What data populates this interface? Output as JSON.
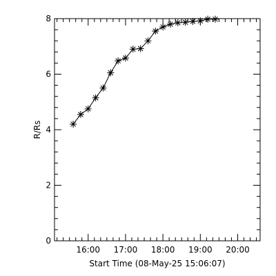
{
  "chart_data": {
    "type": "scatter",
    "title": "",
    "xlabel": "Start Time (08-May-25 15:06:07)",
    "ylabel": "R/Rs",
    "xlim": [
      "15:06",
      "20:36"
    ],
    "ylim": [
      0,
      8
    ],
    "x_ticks": [
      "16:00",
      "17:00",
      "18:00",
      "19:00",
      "20:00"
    ],
    "y_ticks": [
      "0",
      "2",
      "4",
      "6",
      "8"
    ],
    "grid": false,
    "legend": "none",
    "marker": "asterisk",
    "line": "connected",
    "x": [
      "15:36",
      "15:48",
      "16:00",
      "16:12",
      "16:24",
      "16:36",
      "16:48",
      "17:00",
      "17:12",
      "17:24",
      "17:36",
      "17:48",
      "18:00",
      "18:12",
      "18:24",
      "18:36",
      "18:48",
      "19:00",
      "19:12",
      "19:24"
    ],
    "y": [
      4.2,
      4.55,
      4.75,
      5.15,
      5.5,
      6.05,
      6.48,
      6.58,
      6.9,
      6.92,
      7.2,
      7.55,
      7.7,
      7.8,
      7.85,
      7.87,
      7.9,
      7.92,
      7.98,
      7.98
    ]
  }
}
